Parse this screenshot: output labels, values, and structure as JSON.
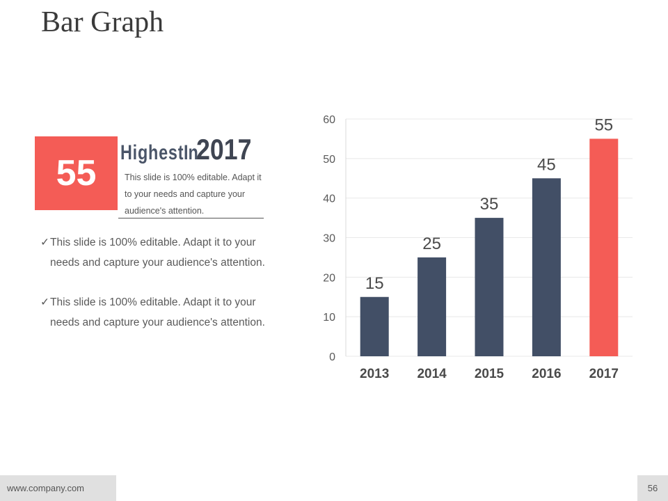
{
  "slide": {
    "title": "Bar Graph",
    "page_number": "56",
    "footer_url": "www.company.com"
  },
  "highlight": {
    "value": "55",
    "headline_word": "Highest",
    "headline_in": "In",
    "headline_year": "2017",
    "description": "This slide is 100% editable. Adapt it to your needs and capture your audience's attention."
  },
  "bullets": [
    {
      "check": "✓",
      "line1": "This slide is 100% editable. Adapt it to your",
      "line2": "needs and capture your audience's attention."
    },
    {
      "check": "✓",
      "line1": "This slide is 100% editable. Adapt it to your",
      "line2": "needs and capture your audience's attention."
    }
  ],
  "colors": {
    "accent": "#f45c56",
    "bar_default": "#424f66",
    "grid": "#e8e8e8"
  },
  "chart_data": {
    "type": "bar",
    "categories": [
      "2013",
      "2014",
      "2015",
      "2016",
      "2017"
    ],
    "values": [
      15,
      25,
      35,
      45,
      55
    ],
    "highlight_index": 4,
    "data_labels": true,
    "yticks": [
      "0",
      "10",
      "20",
      "30",
      "40",
      "50",
      "60"
    ],
    "ylim": [
      0,
      60
    ],
    "grid": true,
    "title": "",
    "xlabel": "",
    "ylabel": ""
  }
}
